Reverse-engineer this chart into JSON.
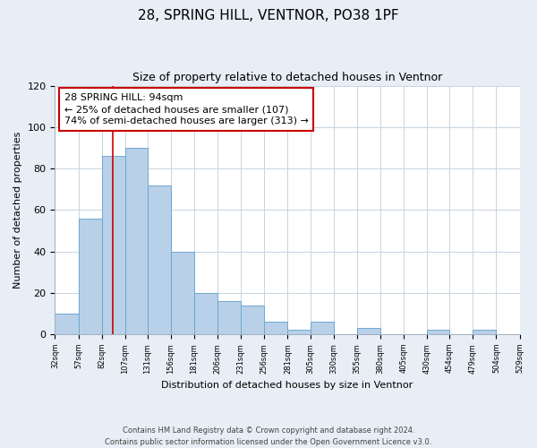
{
  "title": "28, SPRING HILL, VENTNOR, PO38 1PF",
  "subtitle": "Size of property relative to detached houses in Ventnor",
  "xlabel": "Distribution of detached houses by size in Ventnor",
  "ylabel": "Number of detached properties",
  "bar_left_edges": [
    32,
    57,
    82,
    107,
    131,
    156,
    181,
    206,
    231,
    256,
    281,
    305,
    330,
    355,
    380,
    405,
    430,
    454,
    479,
    504
  ],
  "bar_widths": [
    25,
    25,
    25,
    24,
    25,
    25,
    25,
    25,
    25,
    25,
    24,
    25,
    25,
    25,
    25,
    25,
    24,
    25,
    25,
    25
  ],
  "bar_heights": [
    10,
    56,
    86,
    90,
    72,
    40,
    20,
    16,
    14,
    6,
    2,
    6,
    0,
    3,
    0,
    0,
    2,
    0,
    2,
    0
  ],
  "bar_color": "#b8d0e8",
  "bar_edge_color": "#6fa8d0",
  "tick_labels": [
    "32sqm",
    "57sqm",
    "82sqm",
    "107sqm",
    "131sqm",
    "156sqm",
    "181sqm",
    "206sqm",
    "231sqm",
    "256sqm",
    "281sqm",
    "305sqm",
    "330sqm",
    "355sqm",
    "380sqm",
    "405sqm",
    "430sqm",
    "454sqm",
    "479sqm",
    "504sqm",
    "529sqm"
  ],
  "ylim": [
    0,
    120
  ],
  "yticks": [
    0,
    20,
    40,
    60,
    80,
    100,
    120
  ],
  "property_line_x": 94,
  "property_line_color": "#cc0000",
  "annotation_line1": "28 SPRING HILL: 94sqm",
  "annotation_line2": "← 25% of detached houses are smaller (107)",
  "annotation_line3": "74% of semi-detached houses are larger (313) →",
  "footer_line1": "Contains HM Land Registry data © Crown copyright and database right 2024.",
  "footer_line2": "Contains public sector information licensed under the Open Government Licence v3.0.",
  "bg_color": "#e8eef5",
  "plot_bg_color": "#ffffff",
  "grid_color": "#c8d4e0"
}
